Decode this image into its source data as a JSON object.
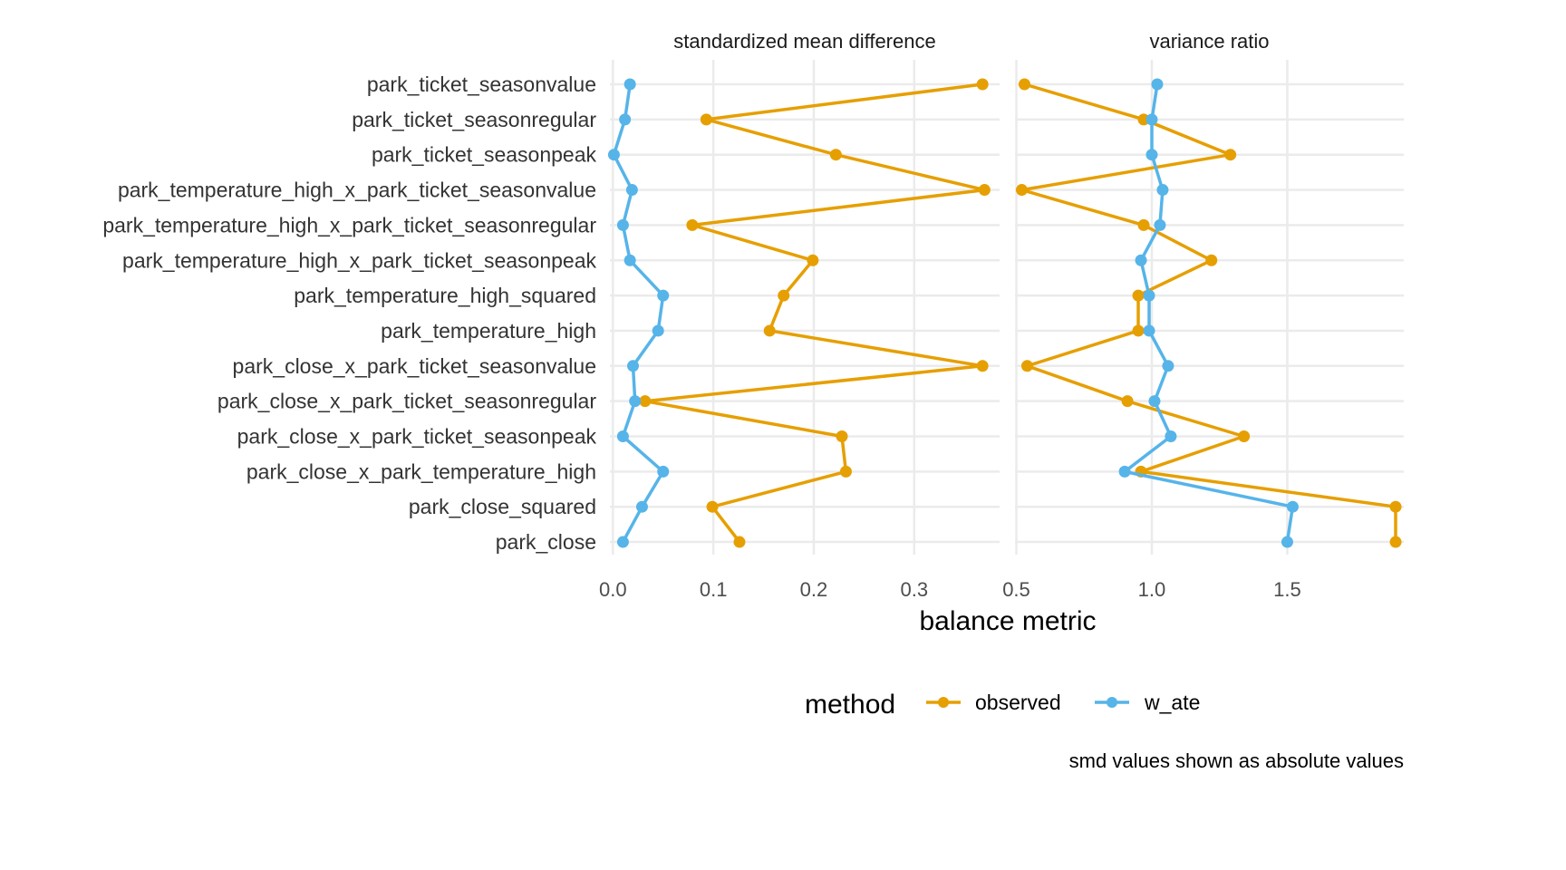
{
  "chart_data": {
    "type": "line",
    "xlabel": "balance metric",
    "caption": "smd values shown as absolute values",
    "legend": {
      "title": "method",
      "position": "bottom",
      "entries": [
        "observed",
        "w_ate"
      ]
    },
    "colors": {
      "observed": "#E69F00",
      "w_ate": "#56B4E9",
      "grid": "#ebebeb"
    },
    "variables": [
      "park_ticket_seasonvalue",
      "park_ticket_seasonregular",
      "park_ticket_seasonpeak",
      "park_temperature_high_x_park_ticket_seasonvalue",
      "park_temperature_high_x_park_ticket_seasonregular",
      "park_temperature_high_x_park_ticket_seasonpeak",
      "park_temperature_high_squared",
      "park_temperature_high",
      "park_close_x_park_ticket_seasonvalue",
      "park_close_x_park_ticket_seasonregular",
      "park_close_x_park_ticket_seasonpeak",
      "park_close_x_park_temperature_high",
      "park_close_squared",
      "park_close"
    ],
    "panels": [
      {
        "title": "standardized mean difference",
        "xlim": [
          -0.003,
          0.385
        ],
        "ticks": [
          0.0,
          0.1,
          0.2,
          0.3
        ],
        "tick_labels": [
          "0.0",
          "0.1",
          "0.2",
          "0.3"
        ],
        "series": [
          {
            "name": "observed",
            "values": [
              0.368,
              0.093,
              0.222,
              0.37,
              0.079,
              0.199,
              0.17,
              0.156,
              0.368,
              0.032,
              0.228,
              0.232,
              0.099,
              0.126
            ]
          },
          {
            "name": "w_ate",
            "values": [
              0.017,
              0.012,
              0.001,
              0.019,
              0.01,
              0.017,
              0.05,
              0.045,
              0.02,
              0.022,
              0.01,
              0.05,
              0.029,
              0.01
            ]
          }
        ]
      },
      {
        "title": "variance ratio",
        "xlim": [
          0.495,
          1.93
        ],
        "ticks": [
          0.5,
          1.0,
          1.5
        ],
        "tick_labels": [
          "0.5",
          "1.0",
          "1.5"
        ],
        "series": [
          {
            "name": "observed",
            "values": [
              0.53,
              0.97,
              1.29,
              0.52,
              0.97,
              1.22,
              0.95,
              0.95,
              0.54,
              0.91,
              1.34,
              0.96,
              1.9,
              1.9
            ]
          },
          {
            "name": "w_ate",
            "values": [
              1.02,
              1.0,
              1.0,
              1.04,
              1.03,
              0.96,
              0.99,
              0.99,
              1.06,
              1.01,
              1.07,
              0.9,
              1.52,
              1.5
            ]
          }
        ]
      }
    ]
  }
}
